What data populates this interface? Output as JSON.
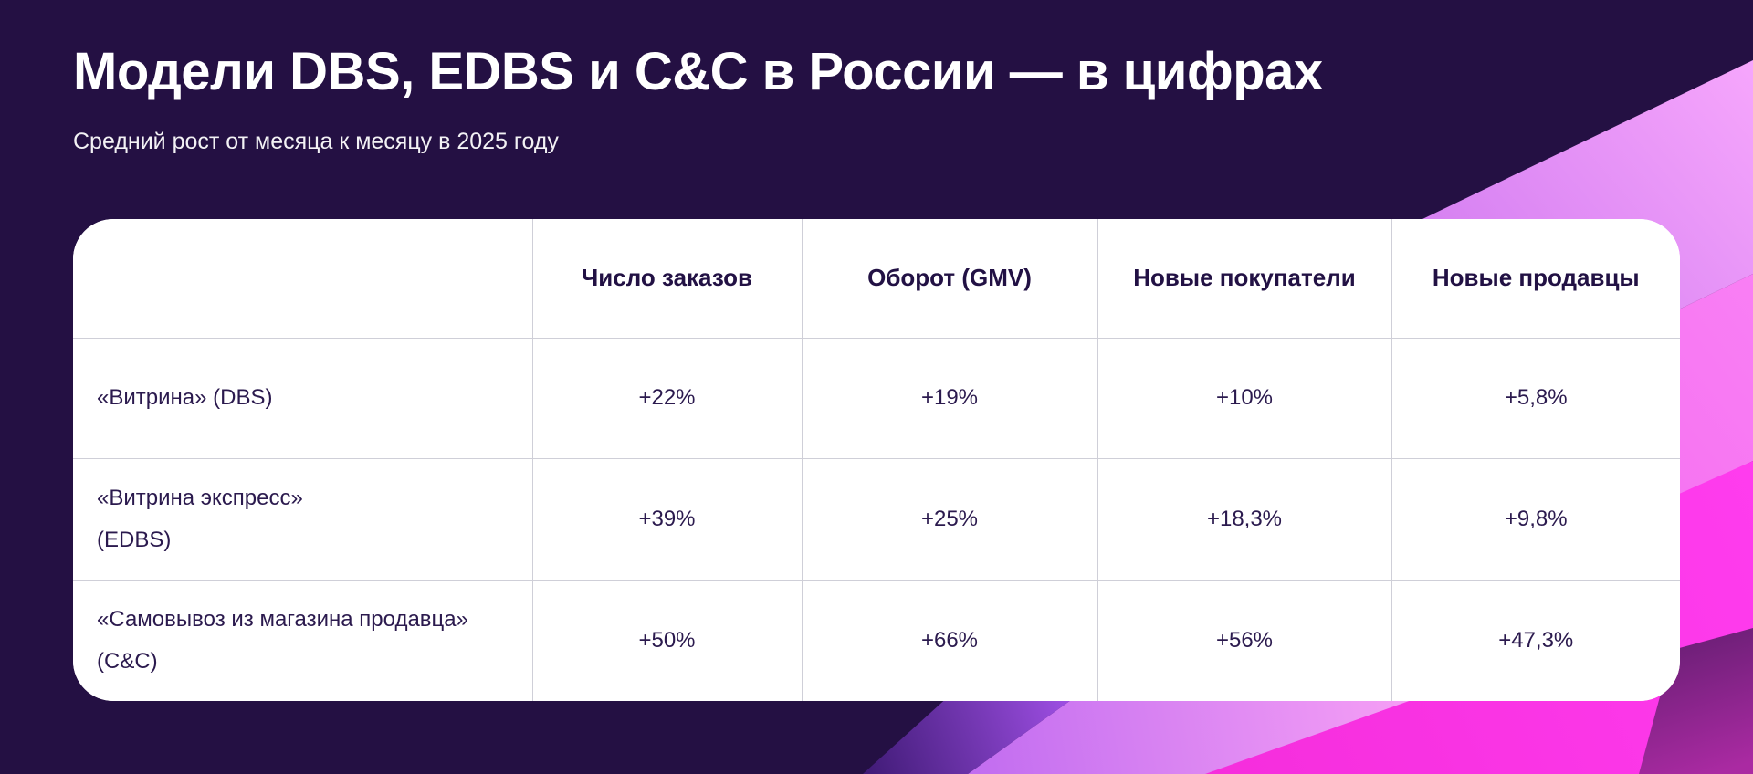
{
  "page": {
    "title": "Модели DBS, EDBS и C&C в России — в цифрах",
    "subtitle": "Средний рост от месяца к месяцу в 2025 году"
  },
  "chart_data": {
    "type": "table",
    "title": "Модели DBS, EDBS и C&C в России — в цифрах",
    "subtitle": "Средний рост от месяца к месяцу в 2025 году",
    "columns": [
      "",
      "Число заказов",
      "Оборот (GMV)",
      "Новые покупатели",
      "Новые продавцы"
    ],
    "rows": [
      {
        "label_lines": [
          "«Витрина» (DBS)"
        ],
        "values": [
          "+22%",
          "+19%",
          "+10%",
          "+5,8%"
        ]
      },
      {
        "label_lines": [
          "«Витрина экспресс»",
          "(EDBS)"
        ],
        "values": [
          "+39%",
          "+25%",
          "+18,3%",
          "+9,8%"
        ]
      },
      {
        "label_lines": [
          "«Самовывоз из магазина продавца»",
          "(C&C)"
        ],
        "values": [
          "+50%",
          "+66%",
          "+56%",
          "+47,3%"
        ]
      }
    ]
  },
  "colors": {
    "background": "#241043",
    "title_text": "#ffffff",
    "table_bg": "#ffffff",
    "table_text": "#2b1a4e",
    "table_border": "#cfcfd8",
    "band_lavender_from": "#b257e6",
    "band_lavender_to": "#f6a6fc",
    "band_pink_from": "#ef59ec",
    "band_pink_to": "#f97ff4",
    "band_magenta_from": "#f32ad8",
    "band_magenta_to": "#ff3cee",
    "wedge_dark_from": "#6b1f76",
    "wedge_dark_to": "#aa2aa2",
    "band_purple_from": "#3f1a75",
    "band_purple_to": "#a251e8",
    "band_violet_from": "#c16cf0",
    "band_violet_to": "#f7a1f5"
  }
}
